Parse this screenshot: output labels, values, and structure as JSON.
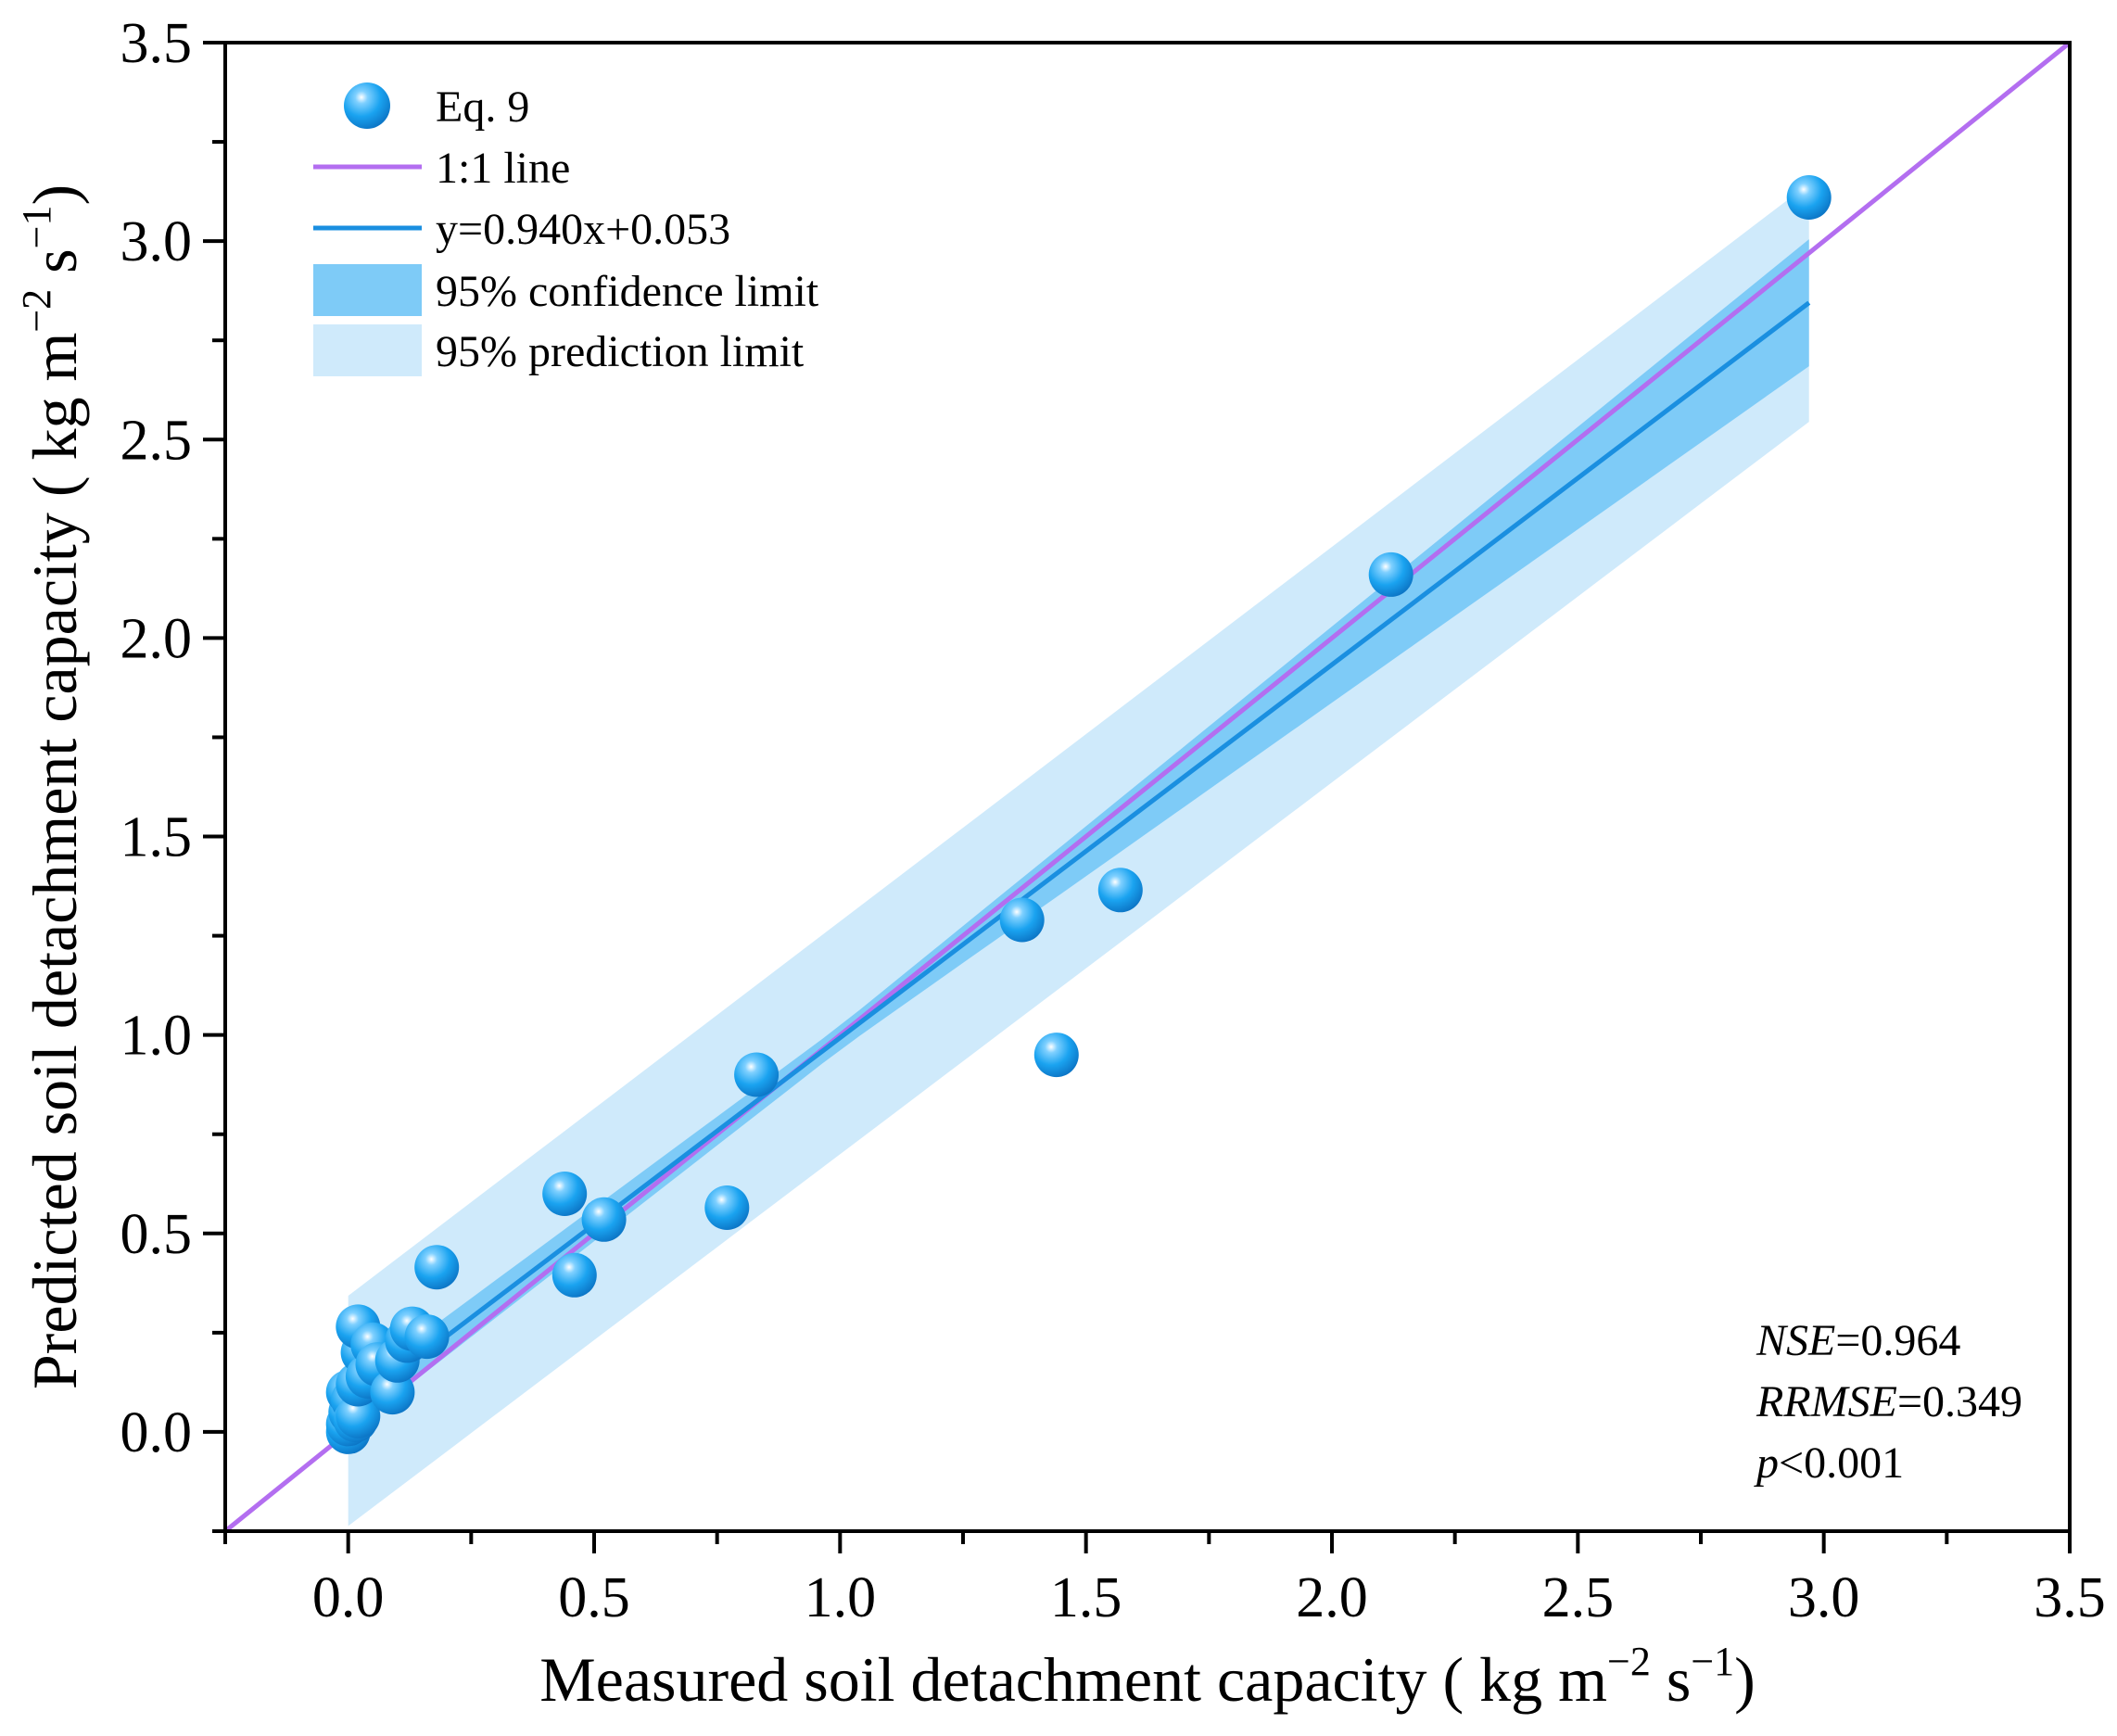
{
  "chart_data": {
    "type": "scatter",
    "xlabel": "Measured soil detachment capacity ( kg m",
    "ylabel": "Predicted soil detachment capacity ( kg m",
    "unit_mid": " s",
    "unit_end": ")",
    "unit_exp1": "−2",
    "unit_exp2": "−1",
    "xlim": [
      -0.25,
      3.5
    ],
    "ylim": [
      -0.25,
      3.5
    ],
    "xticks": [
      0.0,
      0.5,
      1.0,
      1.5,
      2.0,
      2.5,
      3.0,
      3.5
    ],
    "yticks": [
      0.0,
      0.5,
      1.0,
      1.5,
      2.0,
      2.5,
      3.0,
      3.5
    ],
    "xtick_labels": [
      "0.0",
      "0.5",
      "1.0",
      "1.5",
      "2.0",
      "2.5",
      "3.0",
      "3.5"
    ],
    "ytick_labels": [
      "0.0",
      "0.5",
      "1.0",
      "1.5",
      "2.0",
      "2.5",
      "3.0",
      "3.5"
    ],
    "grid": false,
    "legend_position": "top-left",
    "series": [
      {
        "name": "Eq. 9",
        "kind": "scatter",
        "color": "#1aa3f0",
        "points": [
          [
            0.0,
            0.0
          ],
          [
            0.0,
            0.02
          ],
          [
            0.005,
            0.05
          ],
          [
            0.0,
            0.1
          ],
          [
            0.01,
            0.08
          ],
          [
            0.015,
            0.03
          ],
          [
            0.02,
            0.04
          ],
          [
            0.02,
            0.12
          ],
          [
            0.03,
            0.2
          ],
          [
            0.02,
            0.265
          ],
          [
            0.04,
            0.14
          ],
          [
            0.05,
            0.22
          ],
          [
            0.06,
            0.17
          ],
          [
            0.09,
            0.1
          ],
          [
            0.1,
            0.18
          ],
          [
            0.12,
            0.23
          ],
          [
            0.13,
            0.26
          ],
          [
            0.16,
            0.24
          ],
          [
            0.18,
            0.415
          ],
          [
            0.44,
            0.6
          ],
          [
            0.46,
            0.395
          ],
          [
            0.52,
            0.535
          ],
          [
            0.77,
            0.565
          ],
          [
            0.83,
            0.9
          ],
          [
            1.37,
            1.29
          ],
          [
            1.44,
            0.95
          ],
          [
            1.57,
            1.365
          ],
          [
            2.12,
            2.16
          ],
          [
            2.97,
            3.11
          ]
        ]
      },
      {
        "name": "1:1 line",
        "kind": "line",
        "color": "#b36ef0",
        "slope": 1.0,
        "intercept": 0.0
      },
      {
        "name": "y=0.940x+0.053",
        "kind": "line",
        "color": "#1a8fe0",
        "slope": 0.94,
        "intercept": 0.053,
        "x_range": [
          0.0,
          2.97
        ]
      },
      {
        "name": "95% confidence limit",
        "kind": "band",
        "color": "#7ecbf7",
        "upper_offset": [
          [
            0.0,
            0.055
          ],
          [
            1.0,
            0.03
          ],
          [
            2.97,
            0.16
          ]
        ],
        "lower_offset": [
          [
            0.0,
            0.055
          ],
          [
            1.0,
            0.03
          ],
          [
            2.97,
            0.16
          ]
        ]
      },
      {
        "name": "95% prediction limit",
        "kind": "band",
        "color": "#cfeafb",
        "upper_offset": [
          [
            0.0,
            0.29
          ],
          [
            2.97,
            0.3
          ]
        ],
        "lower_offset": [
          [
            0.0,
            0.29
          ],
          [
            2.97,
            0.3
          ]
        ]
      }
    ],
    "annotations": [
      {
        "label": "NSE",
        "value": "=0.964"
      },
      {
        "label": "RRMSE",
        "value": "=0.349"
      },
      {
        "label": "p",
        "value": "<0.001"
      }
    ]
  },
  "colors": {
    "axis": "#000000",
    "point_fill": "#1aa3f0",
    "point_dark": "#0a6fc0",
    "point_highlight": "#ffffff"
  }
}
